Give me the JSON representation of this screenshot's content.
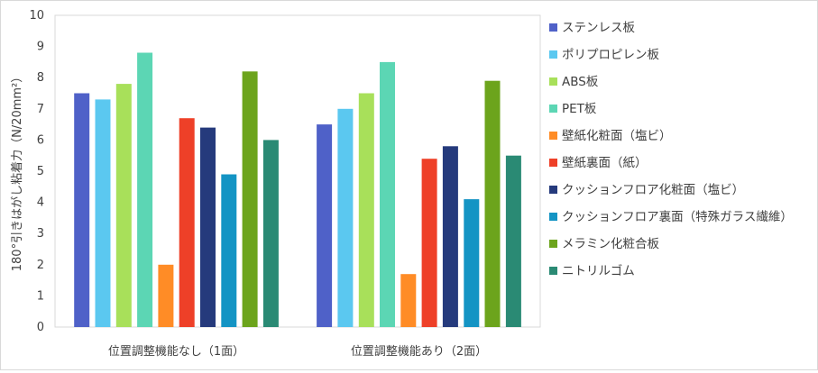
{
  "chart_data": {
    "type": "bar",
    "title": "",
    "xlabel": "",
    "ylabel": "180°引きはがし粘着力（N/20mm²）",
    "ylim": [
      0,
      10
    ],
    "yticks": [
      "0",
      "1",
      "2",
      "3",
      "4",
      "5",
      "6",
      "7",
      "8",
      "9",
      "10"
    ],
    "categories": [
      "位置調整機能なし（1面）",
      "位置調整機能あり（2面）"
    ],
    "grid": false,
    "legend_position": "right",
    "series": [
      {
        "name": "ステンレス板",
        "color": "#4f61c8",
        "values": [
          7.5,
          6.5
        ]
      },
      {
        "name": "ポリプロピレン板",
        "color": "#5bc8f0",
        "values": [
          7.3,
          7.0
        ]
      },
      {
        "name": "ABS板",
        "color": "#a8e05a",
        "values": [
          7.8,
          7.5
        ]
      },
      {
        "name": "PET板",
        "color": "#5cd6b4",
        "values": [
          8.8,
          8.5
        ]
      },
      {
        "name": "壁紙化粧面（塩ビ）",
        "color": "#ff8c26",
        "values": [
          2.0,
          1.7
        ]
      },
      {
        "name": "壁紙裏面（紙）",
        "color": "#ee4028",
        "values": [
          6.7,
          5.4
        ]
      },
      {
        "name": "クッションフロア化粧面（塩ビ）",
        "color": "#253a7c",
        "values": [
          6.4,
          5.8
        ]
      },
      {
        "name": "クッションフロア裏面（特殊ガラス繊維）",
        "color": "#1494c4",
        "values": [
          4.9,
          4.1
        ]
      },
      {
        "name": "メラミン化粧合板",
        "color": "#6ca41c",
        "values": [
          8.2,
          7.9
        ]
      },
      {
        "name": "ニトリルゴム",
        "color": "#2a8a74",
        "values": [
          6.0,
          5.5
        ]
      }
    ]
  }
}
